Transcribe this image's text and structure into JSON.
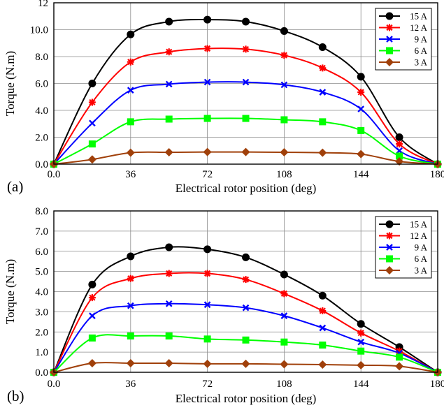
{
  "chart_data": [
    {
      "type": "line",
      "panel_label": "(a)",
      "xlabel": "Electrical rotor position (deg)",
      "ylabel": "Torque (N.m)",
      "xlim": [
        0,
        180
      ],
      "ylim": [
        0,
        12
      ],
      "xticks": [
        "0.0",
        "36",
        "72",
        "108",
        "144",
        "180"
      ],
      "yticks": [
        "0.0",
        "2.0",
        "4.0",
        "6.0",
        "8.0",
        "10.0",
        "12"
      ],
      "grid": true,
      "legend_position": "top-right",
      "x": [
        0,
        18,
        36,
        54,
        72,
        90,
        108,
        126,
        144,
        162,
        180
      ],
      "series": [
        {
          "name": "15 A",
          "color": "#000000",
          "marker": "circle",
          "values": [
            0.0,
            6.0,
            9.65,
            10.6,
            10.75,
            10.6,
            9.9,
            8.7,
            6.5,
            2.0,
            0.0
          ]
        },
        {
          "name": "12 A",
          "color": "#ff0000",
          "marker": "asterisk",
          "values": [
            0.0,
            4.6,
            7.6,
            8.35,
            8.6,
            8.55,
            8.1,
            7.15,
            5.35,
            1.5,
            0.0
          ]
        },
        {
          "name": "9 A",
          "color": "#0000ff",
          "marker": "x",
          "values": [
            0.0,
            3.05,
            5.5,
            5.95,
            6.1,
            6.1,
            5.9,
            5.35,
            4.1,
            1.0,
            0.0
          ]
        },
        {
          "name": "6 A",
          "color": "#00ff00",
          "marker": "square",
          "values": [
            0.0,
            1.5,
            3.15,
            3.35,
            3.4,
            3.4,
            3.3,
            3.15,
            2.5,
            0.6,
            0.0
          ]
        },
        {
          "name": "3 A",
          "color": "#a0400a",
          "marker": "diamond",
          "values": [
            0.0,
            0.35,
            0.85,
            0.88,
            0.9,
            0.9,
            0.88,
            0.85,
            0.75,
            0.2,
            0.0
          ]
        }
      ]
    },
    {
      "type": "line",
      "panel_label": "(b)",
      "xlabel": "Electrical rotor position (deg)",
      "ylabel": "Torque (N.m)",
      "xlim": [
        0,
        180
      ],
      "ylim": [
        0,
        8
      ],
      "xticks": [
        "0.0",
        "36",
        "72",
        "108",
        "144",
        "180"
      ],
      "yticks": [
        "0.0",
        "1.0",
        "2.0",
        "3.0",
        "4.0",
        "5.0",
        "6.0",
        "7.0",
        "8.0"
      ],
      "grid": true,
      "legend_position": "top-right",
      "x": [
        0,
        18,
        36,
        54,
        72,
        90,
        108,
        126,
        144,
        162,
        180
      ],
      "series": [
        {
          "name": "15 A",
          "color": "#000000",
          "marker": "circle",
          "values": [
            0.0,
            4.35,
            5.75,
            6.2,
            6.1,
            5.7,
            4.85,
            3.8,
            2.4,
            1.25,
            0.0
          ]
        },
        {
          "name": "12 A",
          "color": "#ff0000",
          "marker": "asterisk",
          "values": [
            0.0,
            3.7,
            4.65,
            4.9,
            4.9,
            4.6,
            3.9,
            3.05,
            1.95,
            1.05,
            0.0
          ]
        },
        {
          "name": "9 A",
          "color": "#0000ff",
          "marker": "x",
          "values": [
            0.0,
            2.8,
            3.3,
            3.4,
            3.35,
            3.2,
            2.8,
            2.2,
            1.5,
            0.95,
            0.0
          ]
        },
        {
          "name": "6 A",
          "color": "#00ff00",
          "marker": "square",
          "values": [
            0.0,
            1.7,
            1.8,
            1.8,
            1.65,
            1.6,
            1.5,
            1.35,
            1.05,
            0.75,
            0.0
          ]
        },
        {
          "name": "3 A",
          "color": "#a0400a",
          "marker": "diamond",
          "values": [
            0.0,
            0.45,
            0.45,
            0.45,
            0.42,
            0.42,
            0.4,
            0.38,
            0.35,
            0.3,
            0.0
          ]
        }
      ]
    }
  ]
}
